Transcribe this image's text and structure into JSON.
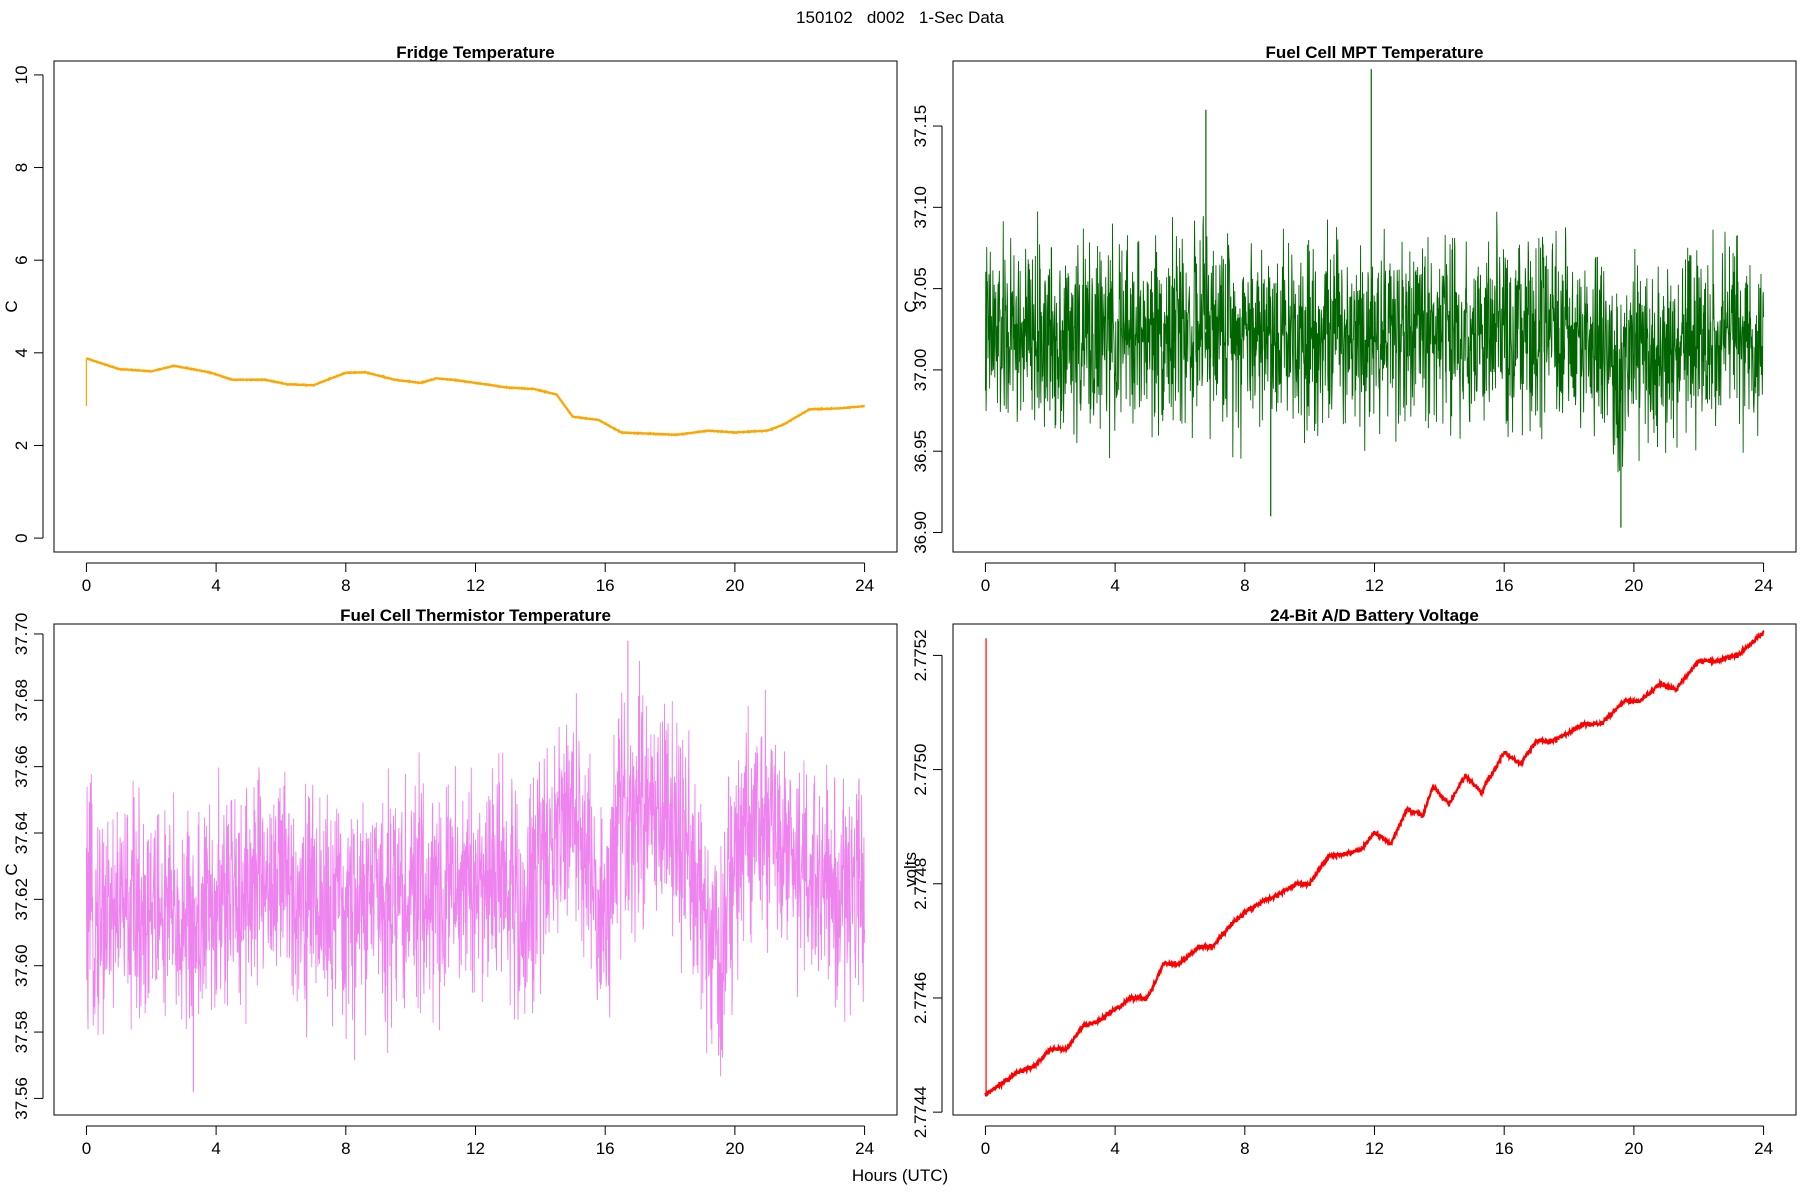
{
  "figure": {
    "suptitle": "150102   d002   1-Sec Data",
    "xlabel": "Hours (UTC)"
  },
  "chart_data": [
    {
      "type": "line",
      "title": "Fridge Temperature",
      "ylabel": "C",
      "color": "#ffa500",
      "noise": 0.01,
      "xlim": [
        -1,
        25
      ],
      "ylim": [
        -0.3,
        10.3
      ],
      "xticks": [
        0,
        4,
        8,
        12,
        16,
        20,
        24
      ],
      "yticks": [
        0,
        2,
        4,
        6,
        8,
        10
      ],
      "ytick_labels": [
        "0",
        "2",
        "4",
        "6",
        "8",
        "10"
      ],
      "x": [
        0,
        1,
        2,
        2.7,
        3.8,
        4.5,
        5.5,
        6.2,
        7,
        8,
        8.6,
        9.5,
        10.3,
        10.8,
        11.5,
        12.3,
        13,
        13.8,
        14.5,
        15,
        15.8,
        16.5,
        17.5,
        18.2,
        19.2,
        20,
        21,
        21.5,
        22.3,
        23.2,
        24
      ],
      "y": [
        3.88,
        3.65,
        3.6,
        3.72,
        3.58,
        3.42,
        3.42,
        3.32,
        3.3,
        3.57,
        3.58,
        3.42,
        3.35,
        3.45,
        3.4,
        3.32,
        3.25,
        3.22,
        3.1,
        2.62,
        2.55,
        2.28,
        2.25,
        2.23,
        2.32,
        2.28,
        2.32,
        2.45,
        2.78,
        2.8,
        2.85
      ],
      "spikes": [
        {
          "x": 0,
          "y": 2.85
        }
      ]
    },
    {
      "type": "line",
      "title": "Fuel Cell MPT Temperature",
      "ylabel": "C",
      "color": "#006400",
      "noise": 0.085,
      "xlim": [
        -1,
        25
      ],
      "ylim": [
        36.888,
        37.19
      ],
      "xticks": [
        0,
        4,
        8,
        12,
        16,
        20,
        24
      ],
      "yticks": [
        36.9,
        36.95,
        37.0,
        37.05,
        37.1,
        37.15
      ],
      "ytick_labels": [
        "36.90",
        "36.95",
        "37.00",
        "37.05",
        "37.10",
        "37.15"
      ],
      "x": [
        0,
        2,
        4,
        6,
        8,
        10,
        12,
        14,
        16,
        18,
        19,
        19.5,
        20,
        22,
        24
      ],
      "y": [
        37.02,
        37.02,
        37.02,
        37.025,
        37.025,
        37.025,
        37.025,
        37.025,
        37.02,
        37.02,
        37.015,
        36.995,
        37.005,
        37.015,
        37.02
      ],
      "spikes": [
        {
          "x": 11.9,
          "y": 37.185
        },
        {
          "x": 8.8,
          "y": 36.91
        },
        {
          "x": 19.6,
          "y": 36.903
        },
        {
          "x": 6.8,
          "y": 37.16
        }
      ]
    },
    {
      "type": "line",
      "title": "Fuel Cell Thermistor Temperature",
      "ylabel": "C",
      "color": "#ee82ee",
      "noise": 0.05,
      "xlim": [
        -1,
        25
      ],
      "ylim": [
        37.555,
        37.703
      ],
      "xticks": [
        0,
        4,
        8,
        12,
        16,
        20,
        24
      ],
      "yticks": [
        37.56,
        37.58,
        37.6,
        37.62,
        37.64,
        37.66,
        37.68,
        37.7
      ],
      "ytick_labels": [
        "37.56",
        "37.58",
        "37.60",
        "37.62",
        "37.64",
        "37.66",
        "37.68",
        "37.70"
      ],
      "x": [
        0,
        1,
        2,
        3,
        4,
        5,
        6,
        7,
        8,
        9,
        10,
        11,
        12,
        13,
        13.5,
        14,
        15,
        15.5,
        16,
        16.5,
        17.5,
        18.5,
        19.5,
        20,
        21,
        22,
        23,
        24
      ],
      "y": [
        37.613,
        37.618,
        37.617,
        37.612,
        37.616,
        37.625,
        37.626,
        37.62,
        37.614,
        37.622,
        37.62,
        37.623,
        37.625,
        37.628,
        37.61,
        37.635,
        37.648,
        37.628,
        37.612,
        37.645,
        37.652,
        37.632,
        37.598,
        37.632,
        37.642,
        37.628,
        37.622,
        37.625
      ],
      "spikes": [
        {
          "x": 16.7,
          "y": 37.698
        },
        {
          "x": 3.3,
          "y": 37.562
        },
        {
          "x": 19.5,
          "y": 37.573
        }
      ]
    },
    {
      "type": "line",
      "title": "24-Bit A/D Battery Voltage",
      "ylabel": "volts",
      "color": "#ff0000",
      "noise": 6e-06,
      "xlim": [
        -1,
        25
      ],
      "ylim": [
        2.774395,
        2.775255
      ],
      "xticks": [
        0,
        4,
        8,
        12,
        16,
        20,
        24
      ],
      "yticks": [
        2.7744,
        2.7746,
        2.7748,
        2.775,
        2.7752
      ],
      "ytick_labels": [
        "2.7744",
        "2.7746",
        "2.7748",
        "2.7750",
        "2.7752"
      ],
      "x": [
        0,
        1,
        1.5,
        2,
        2.5,
        3,
        3.5,
        4.5,
        5,
        5.5,
        6,
        6.6,
        7,
        7.6,
        8,
        8.6,
        9,
        9.6,
        10,
        10.6,
        11,
        11.6,
        12,
        12.5,
        13,
        13.5,
        13.8,
        14.3,
        14.8,
        15.3,
        16,
        16.5,
        17,
        17.5,
        18.5,
        19,
        19.7,
        20.2,
        20.8,
        21.3,
        22,
        22.5,
        23.2,
        24
      ],
      "y": [
        2.77443,
        2.77447,
        2.77448,
        2.77451,
        2.77451,
        2.77455,
        2.77456,
        2.7746,
        2.7746,
        2.77466,
        2.77466,
        2.77469,
        2.77469,
        2.77473,
        2.77475,
        2.77477,
        2.77478,
        2.7748,
        2.7748,
        2.77485,
        2.77485,
        2.77486,
        2.77489,
        2.77487,
        2.77493,
        2.77492,
        2.77497,
        2.77494,
        2.77499,
        2.77496,
        2.77503,
        2.77501,
        2.77505,
        2.77505,
        2.77508,
        2.77508,
        2.77512,
        2.77512,
        2.77515,
        2.77514,
        2.77519,
        2.77519,
        2.7752,
        2.77524
      ],
      "spikes": [
        {
          "x": 0.02,
          "y": 2.77523
        }
      ]
    }
  ]
}
